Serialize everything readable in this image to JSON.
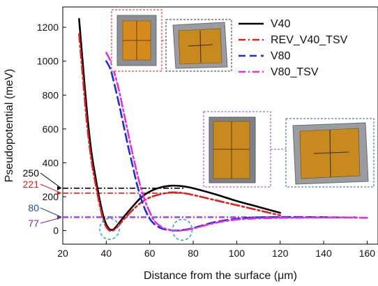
{
  "chart_data": {
    "type": "line",
    "xlabel": "Distance from the surface (μm)",
    "ylabel": "Pseudopotential (meV)",
    "xlim": [
      20,
      165
    ],
    "ylim": [
      -80,
      1320
    ],
    "x_ticks": [
      20,
      40,
      60,
      80,
      100,
      120,
      140,
      160
    ],
    "y_ticks": [
      0,
      200,
      400,
      600,
      800,
      1000,
      1200
    ],
    "legend_position": "top-right",
    "series": [
      {
        "name": "V40",
        "color": "#000000",
        "style": "solid",
        "x": [
          27.5,
          29,
          31,
          33,
          35,
          37,
          39,
          41,
          43,
          45,
          48,
          52,
          56,
          60,
          65,
          70,
          75,
          80,
          90,
          100,
          110,
          120
        ],
        "y": [
          1250,
          1020,
          720,
          480,
          320,
          180,
          70,
          15,
          5,
          30,
          80,
          140,
          195,
          230,
          255,
          265,
          262,
          250,
          215,
          175,
          140,
          105
        ]
      },
      {
        "name": "REV_V40_TSV",
        "color": "#e0201a",
        "style": "dashdot",
        "x": [
          27.5,
          29,
          31,
          33,
          35,
          37,
          39,
          41,
          43,
          45,
          48,
          52,
          56,
          60,
          65,
          70,
          75,
          80,
          90,
          100,
          110,
          120
        ],
        "y": [
          1160,
          940,
          650,
          430,
          280,
          150,
          50,
          5,
          0,
          20,
          65,
          120,
          165,
          195,
          215,
          225,
          222,
          210,
          180,
          150,
          120,
          90
        ]
      },
      {
        "name": "V80",
        "color": "#1c2fd6",
        "style": "dash",
        "x": [
          40,
          42,
          44,
          46,
          48,
          50,
          52,
          54,
          56,
          58,
          60,
          62,
          65,
          68,
          72,
          76,
          80,
          90,
          100,
          110,
          120,
          130,
          140,
          150
        ],
        "y": [
          1000,
          950,
          850,
          740,
          620,
          500,
          390,
          280,
          190,
          120,
          70,
          40,
          15,
          5,
          0,
          5,
          15,
          50,
          70,
          78,
          80,
          80,
          79,
          77
        ]
      },
      {
        "name": "V80_TSV",
        "color": "#e030e0",
        "style": "dashdot",
        "x": [
          40,
          42,
          44,
          46,
          48,
          50,
          52,
          54,
          56,
          58,
          60,
          62,
          65,
          68,
          72,
          76,
          80,
          90,
          100,
          110,
          120,
          130,
          140,
          150,
          160
        ],
        "y": [
          1050,
          1000,
          920,
          820,
          700,
          580,
          460,
          350,
          250,
          170,
          110,
          60,
          25,
          8,
          0,
          2,
          12,
          45,
          65,
          72,
          75,
          76,
          77,
          77,
          75
        ]
      }
    ],
    "reference_lines": [
      {
        "label": "250",
        "y": 250,
        "x_start": 20,
        "x_end": 76,
        "color": "#000000",
        "label_color": "#000000"
      },
      {
        "label": "221",
        "y": 221,
        "x_start": 20,
        "x_end": 76,
        "color": "#e0201a",
        "label_color": "#e0201a"
      },
      {
        "label": "80",
        "y": 80,
        "x_start": 20,
        "x_end": 155,
        "color": "#1c2fd6",
        "label_color": "#1c4fa0"
      },
      {
        "label": "77",
        "y": 77,
        "x_start": 20,
        "x_end": 155,
        "color": "#e030e0",
        "label_color": "#7a2a8a"
      }
    ],
    "minimum_markers": [
      {
        "x": 41.5,
        "y": 10,
        "color": "#2aa7d8"
      },
      {
        "x": 75,
        "y": 5,
        "color": "#2aa7d8"
      }
    ]
  }
}
